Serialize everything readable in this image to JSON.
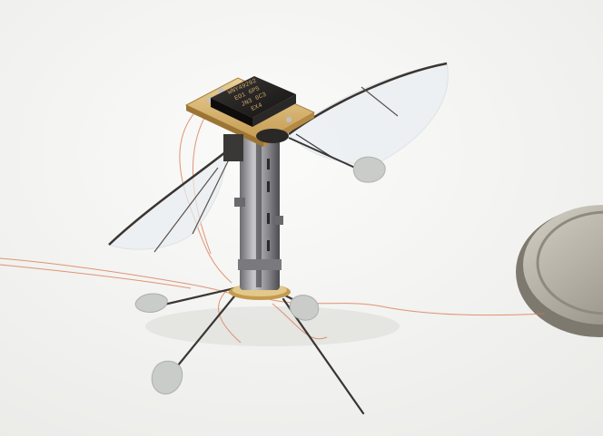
{
  "image": {
    "kind": "photograph",
    "subject": "insect-scale flying robot with translucent wings, wire legs and microchip, beside a coin",
    "colors": {
      "background": "#f6f6f4",
      "chip": "#1e1c1a",
      "circuit_board": "#d9b36a",
      "wing_membrane": "#e9eef2",
      "wing_vein": "#3b3430",
      "leg_wire": "#3a3634",
      "foot_pad": "#c9ccc8",
      "copper_wire": "#d9734a",
      "coin": "#b3aea3"
    }
  },
  "chip": {
    "markings": [
      "WNY49292",
      "EO1 6P5",
      "JN3 6C3",
      "EX4"
    ]
  }
}
